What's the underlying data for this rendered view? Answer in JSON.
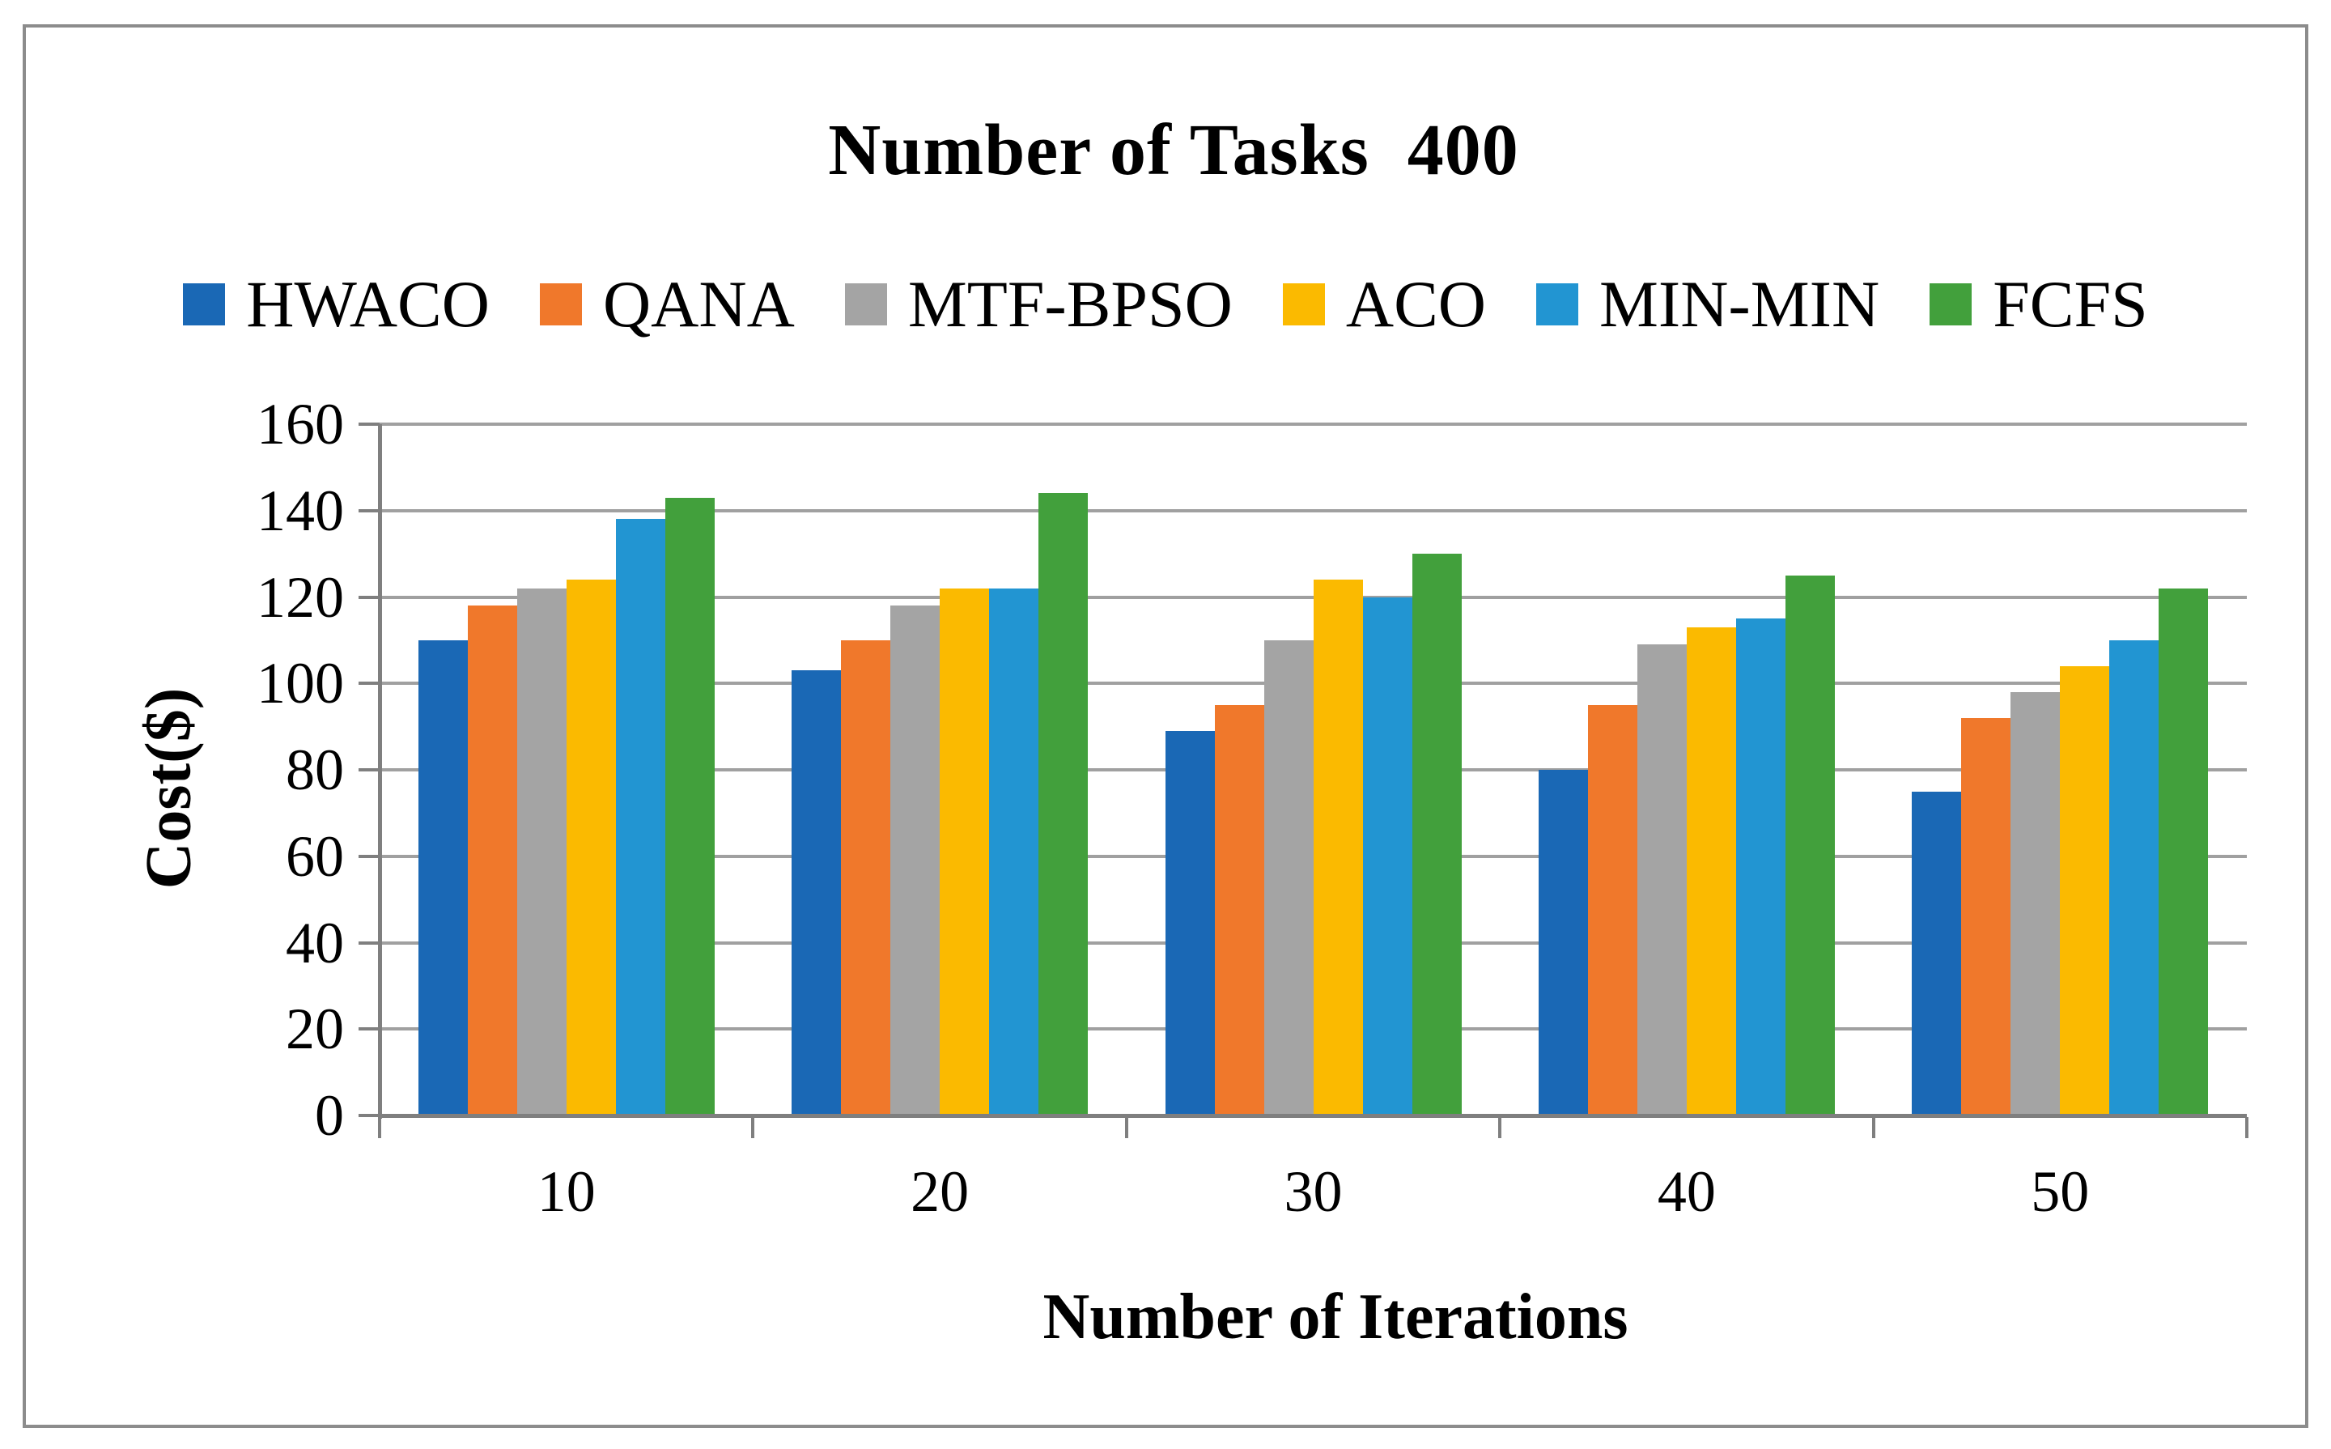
{
  "figure": {
    "title": "Number of Tasks  400"
  },
  "chart_data": {
    "type": "bar",
    "title": "Number of Tasks  400",
    "categories": [
      "10",
      "20",
      "30",
      "40",
      "50"
    ],
    "series": [
      {
        "name": "HWACO",
        "color": "#1a68b5",
        "values": [
          110,
          103,
          89,
          80,
          75
        ]
      },
      {
        "name": "QANA",
        "color": "#f0782b",
        "values": [
          118,
          110,
          95,
          95,
          92
        ]
      },
      {
        "name": "MTF-BPSO",
        "color": "#a4a4a4",
        "values": [
          122,
          118,
          110,
          109,
          98
        ]
      },
      {
        "name": "ACO",
        "color": "#fbba00",
        "values": [
          124,
          122,
          124,
          113,
          104
        ]
      },
      {
        "name": "MIN-MIN",
        "color": "#2295d2",
        "values": [
          138,
          122,
          120,
          115,
          110
        ]
      },
      {
        "name": "FCFS",
        "color": "#42a03c",
        "values": [
          143,
          144,
          130,
          125,
          122
        ]
      }
    ],
    "xlabel": "Number of Iterations",
    "ylabel": "Cost($)",
    "ylim": [
      0,
      160
    ],
    "ytick_step": 20,
    "grid": true,
    "legend_position": "top",
    "axis_color": "#7f7f7f",
    "gridline_color": "#a0a0a0"
  }
}
